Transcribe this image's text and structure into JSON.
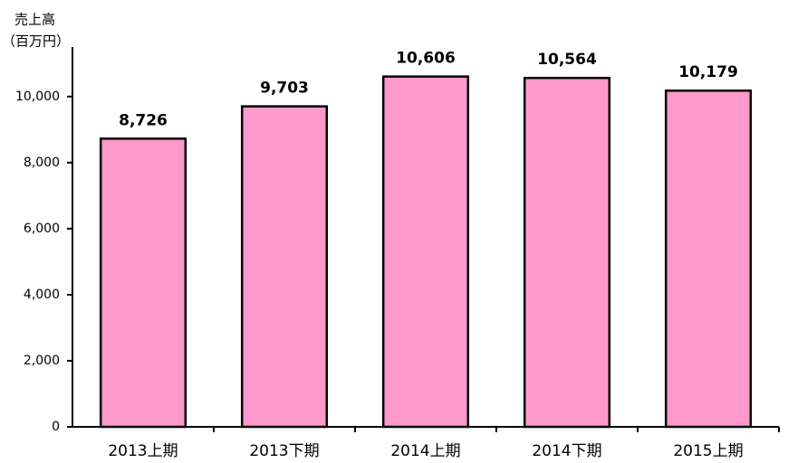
{
  "chart_data": {
    "type": "bar",
    "ylabel": "売上高",
    "yunit": "（百万円）",
    "categories": [
      "2013上期",
      "2013下期",
      "2014上期",
      "2014下期",
      "2015上期"
    ],
    "values": [
      8726,
      9703,
      10606,
      10564,
      10179
    ],
    "value_labels": [
      "8,726",
      "9,703",
      "10,606",
      "10,564",
      "10,179"
    ],
    "color": "#ff99cc",
    "ylim": [
      0,
      11500
    ],
    "yticks": [
      0,
      {
        "value": 2000,
        "label": "2,000"
      },
      {
        "value": 4000,
        "label": "4,000"
      },
      {
        "value": 6000,
        "label": "6,000"
      },
      {
        "value": 8000,
        "label": "8,000"
      },
      {
        "value": 10000,
        "label": "10,000"
      }
    ],
    "grid": false
  }
}
